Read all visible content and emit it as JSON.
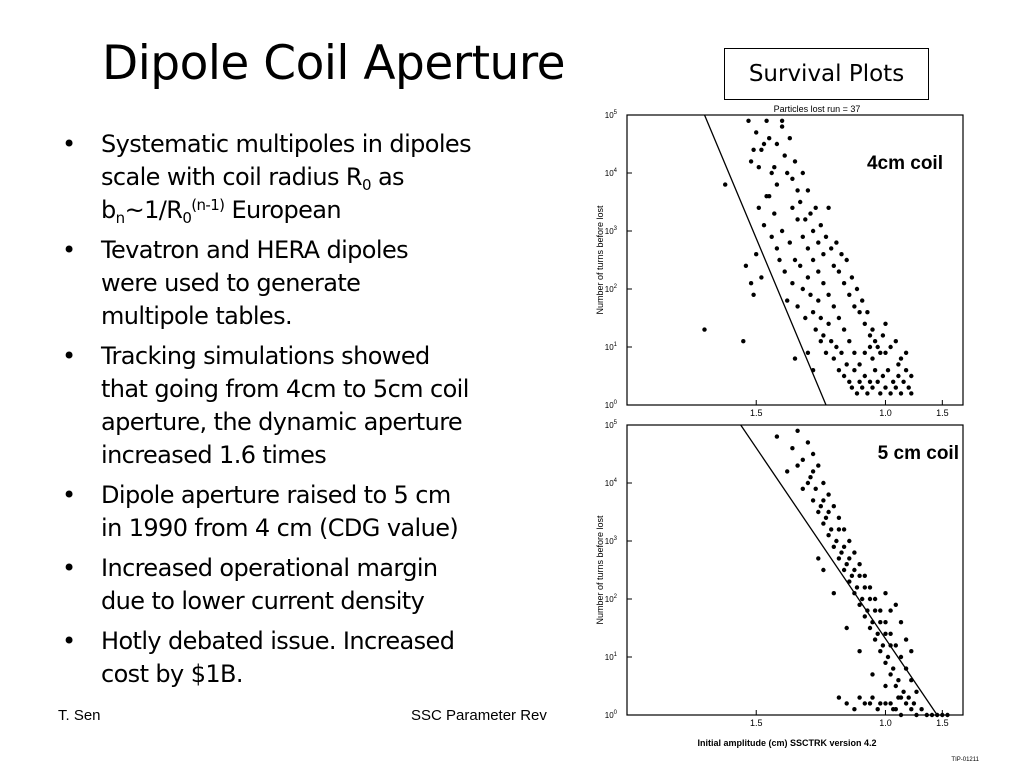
{
  "title": "Dipole Coil Aperture",
  "survival_label": "Survival Plots",
  "bullets": [
    {
      "lines": [
        [
          {
            "t": "Systematic multipoles in dipoles"
          }
        ],
        [
          {
            "t": "scale with coil radius R"
          },
          {
            "t": "0",
            "sub": true
          },
          {
            "t": " as"
          }
        ],
        [
          {
            "t": "b"
          },
          {
            "t": "n",
            "sub": true
          },
          {
            "t": "~1/R"
          },
          {
            "t": "0",
            "sub": true
          },
          {
            "t": "(n-1)",
            "sup": true
          },
          {
            "t": "  European"
          }
        ]
      ]
    },
    {
      "lines": [
        [
          {
            "t": "Tevatron and HERA dipoles"
          }
        ],
        [
          {
            "t": "were used to generate"
          }
        ],
        [
          {
            "t": "multipole tables."
          }
        ]
      ]
    },
    {
      "lines": [
        [
          {
            "t": "Tracking simulations showed"
          }
        ],
        [
          {
            "t": "that going from 4cm to 5cm coil"
          }
        ],
        [
          {
            "t": "aperture, the dynamic aperture"
          }
        ],
        [
          {
            "t": "increased  1.6  times"
          }
        ]
      ]
    },
    {
      "lines": [
        [
          {
            "t": "Dipole aperture raised to 5 cm"
          }
        ],
        [
          {
            "t": "in 1990 from 4 cm (CDG value)"
          }
        ]
      ]
    },
    {
      "lines": [
        [
          {
            "t": "Increased operational margin"
          }
        ],
        [
          {
            "t": "due to lower current density"
          }
        ]
      ]
    },
    {
      "lines": [
        [
          {
            "t": "Hotly debated issue. Increased"
          }
        ],
        [
          {
            "t": "cost by $1B."
          }
        ]
      ]
    }
  ],
  "bullet_char": "•",
  "footer": {
    "left": "T. Sen",
    "center": "SSC Parameter Rev"
  },
  "chart_data": [
    {
      "type": "scatter",
      "title": "Particles lost run = 37",
      "annotation": "4cm coil",
      "xlabel": "",
      "ylabel": "Number of turns before lost",
      "x_ticks": [
        "1.5",
        "1.0",
        "1.5"
      ],
      "y_ticks": [
        "10^0",
        "10^1",
        "10^2",
        "10^3",
        "10^4",
        "10^5"
      ],
      "y_scale": "log",
      "points": [
        [
          1.3,
          1.3
        ],
        [
          1.38,
          3.8
        ],
        [
          1.45,
          1.1
        ],
        [
          1.46,
          2.4
        ],
        [
          1.48,
          2.1
        ],
        [
          1.5,
          2.6
        ],
        [
          1.49,
          1.9
        ],
        [
          1.52,
          2.2
        ],
        [
          1.51,
          3.4
        ],
        [
          1.53,
          3.1
        ],
        [
          1.55,
          3.6
        ],
        [
          1.56,
          2.9
        ],
        [
          1.57,
          3.3
        ],
        [
          1.58,
          2.7
        ],
        [
          1.6,
          3.0
        ],
        [
          1.59,
          2.5
        ],
        [
          1.61,
          2.3
        ],
        [
          1.63,
          2.8
        ],
        [
          1.62,
          1.8
        ],
        [
          1.64,
          2.1
        ],
        [
          1.65,
          2.5
        ],
        [
          1.67,
          2.4
        ],
        [
          1.66,
          1.7
        ],
        [
          1.68,
          2.0
        ],
        [
          1.7,
          2.2
        ],
        [
          1.69,
          1.5
        ],
        [
          1.71,
          1.9
        ],
        [
          1.72,
          1.6
        ],
        [
          1.74,
          1.8
        ],
        [
          1.73,
          1.3
        ],
        [
          1.75,
          1.5
        ],
        [
          1.76,
          1.2
        ],
        [
          1.78,
          1.4
        ],
        [
          1.77,
          0.9
        ],
        [
          1.79,
          1.1
        ],
        [
          1.8,
          0.8
        ],
        [
          1.81,
          1.0
        ],
        [
          1.82,
          0.6
        ],
        [
          1.83,
          0.9
        ],
        [
          1.84,
          0.5
        ],
        [
          1.85,
          0.7
        ],
        [
          1.86,
          0.4
        ],
        [
          1.87,
          0.3
        ],
        [
          1.88,
          0.6
        ],
        [
          1.89,
          0.2
        ],
        [
          1.9,
          0.4
        ],
        [
          1.91,
          0.3
        ],
        [
          1.92,
          0.5
        ],
        [
          1.93,
          0.2
        ],
        [
          1.94,
          0.4
        ],
        [
          1.95,
          0.3
        ],
        [
          1.96,
          0.6
        ],
        [
          1.97,
          0.4
        ],
        [
          1.98,
          0.2
        ],
        [
          1.99,
          0.5
        ],
        [
          2.0,
          0.3
        ],
        [
          2.01,
          0.6
        ],
        [
          2.02,
          0.2
        ],
        [
          2.03,
          0.4
        ],
        [
          2.04,
          0.3
        ],
        [
          2.05,
          0.5
        ],
        [
          2.06,
          0.2
        ],
        [
          2.07,
          0.4
        ],
        [
          2.08,
          0.6
        ],
        [
          2.09,
          0.3
        ],
        [
          2.1,
          0.2
        ],
        [
          2.1,
          0.5
        ],
        [
          1.95,
          0.8
        ],
        [
          2.0,
          0.9
        ],
        [
          2.05,
          0.7
        ],
        [
          2.08,
          0.9
        ],
        [
          1.48,
          4.2
        ],
        [
          1.5,
          4.7
        ],
        [
          1.52,
          4.4
        ],
        [
          1.54,
          4.9
        ],
        [
          1.55,
          4.6
        ],
        [
          1.57,
          4.1
        ],
        [
          1.58,
          4.5
        ],
        [
          1.6,
          4.8
        ],
        [
          1.61,
          4.3
        ],
        [
          1.62,
          4.0
        ],
        [
          1.63,
          4.6
        ],
        [
          1.64,
          3.9
        ],
        [
          1.65,
          4.2
        ],
        [
          1.66,
          3.7
        ],
        [
          1.67,
          3.5
        ],
        [
          1.68,
          4.0
        ],
        [
          1.69,
          3.2
        ],
        [
          1.7,
          3.7
        ],
        [
          1.71,
          3.3
        ],
        [
          1.72,
          3.0
        ],
        [
          1.73,
          3.4
        ],
        [
          1.74,
          2.8
        ],
        [
          1.75,
          3.1
        ],
        [
          1.76,
          2.6
        ],
        [
          1.77,
          2.9
        ],
        [
          1.78,
          3.4
        ],
        [
          1.79,
          2.7
        ],
        [
          1.8,
          2.4
        ],
        [
          1.81,
          2.8
        ],
        [
          1.82,
          2.3
        ],
        [
          1.83,
          2.6
        ],
        [
          1.84,
          2.1
        ],
        [
          1.85,
          2.5
        ],
        [
          1.86,
          1.9
        ],
        [
          1.87,
          2.2
        ],
        [
          1.88,
          1.7
        ],
        [
          1.89,
          2.0
        ],
        [
          1.9,
          1.6
        ],
        [
          1.91,
          1.8
        ],
        [
          1.92,
          1.4
        ],
        [
          1.93,
          1.6
        ],
        [
          1.94,
          1.2
        ],
        [
          1.95,
          1.3
        ],
        [
          1.96,
          1.1
        ],
        [
          1.97,
          1.0
        ],
        [
          1.98,
          0.9
        ],
        [
          1.99,
          1.2
        ],
        [
          2.0,
          1.4
        ],
        [
          2.02,
          1.0
        ],
        [
          2.04,
          1.1
        ],
        [
          2.06,
          0.8
        ],
        [
          1.65,
          0.8
        ],
        [
          1.7,
          0.9
        ],
        [
          1.72,
          0.6
        ],
        [
          1.75,
          1.1
        ],
        [
          1.6,
          4.9
        ],
        [
          1.58,
          3.8
        ],
        [
          1.56,
          4.0
        ],
        [
          1.54,
          3.6
        ],
        [
          1.53,
          4.5
        ],
        [
          1.51,
          4.1
        ],
        [
          1.49,
          4.4
        ],
        [
          1.47,
          4.9
        ],
        [
          1.64,
          3.4
        ],
        [
          1.66,
          3.2
        ],
        [
          1.68,
          2.9
        ],
        [
          1.7,
          2.7
        ],
        [
          1.72,
          2.5
        ],
        [
          1.74,
          2.3
        ],
        [
          1.76,
          2.1
        ],
        [
          1.78,
          1.9
        ],
        [
          1.8,
          1.7
        ],
        [
          1.82,
          1.5
        ],
        [
          1.84,
          1.3
        ],
        [
          1.86,
          1.1
        ],
        [
          1.88,
          0.9
        ],
        [
          1.9,
          0.7
        ],
        [
          1.92,
          0.9
        ],
        [
          1.94,
          1.0
        ]
      ]
    },
    {
      "type": "scatter",
      "title": "",
      "annotation": "5 cm coil",
      "xlabel": "Initial amplitude (cm) SSCTRK version 4.2",
      "ylabel": "Number of turns before lost",
      "x_ticks": [
        "1.5",
        "1.0",
        "1.5"
      ],
      "y_ticks": [
        "10^0",
        "10^1",
        "10^2",
        "10^3",
        "10^4",
        "10^5"
      ],
      "y_scale": "log",
      "code": "TIP-01211",
      "points": [
        [
          1.58,
          4.8
        ],
        [
          1.62,
          4.2
        ],
        [
          1.64,
          4.6
        ],
        [
          1.66,
          4.9
        ],
        [
          1.68,
          4.4
        ],
        [
          1.7,
          4.7
        ],
        [
          1.71,
          4.1
        ],
        [
          1.72,
          4.5
        ],
        [
          1.73,
          3.9
        ],
        [
          1.74,
          4.3
        ],
        [
          1.75,
          3.6
        ],
        [
          1.76,
          4.0
        ],
        [
          1.77,
          3.4
        ],
        [
          1.78,
          3.8
        ],
        [
          1.79,
          3.2
        ],
        [
          1.8,
          3.6
        ],
        [
          1.81,
          3.0
        ],
        [
          1.82,
          3.4
        ],
        [
          1.83,
          2.8
        ],
        [
          1.84,
          3.2
        ],
        [
          1.85,
          2.6
        ],
        [
          1.86,
          3.0
        ],
        [
          1.87,
          2.4
        ],
        [
          1.88,
          2.8
        ],
        [
          1.89,
          2.2
        ],
        [
          1.9,
          2.6
        ],
        [
          1.91,
          2.0
        ],
        [
          1.92,
          2.4
        ],
        [
          1.93,
          1.8
        ],
        [
          1.94,
          2.2
        ],
        [
          1.95,
          1.6
        ],
        [
          1.96,
          2.0
        ],
        [
          1.97,
          1.4
        ],
        [
          1.98,
          1.8
        ],
        [
          1.99,
          1.2
        ],
        [
          2.0,
          1.6
        ],
        [
          2.01,
          1.0
        ],
        [
          2.02,
          1.4
        ],
        [
          2.03,
          0.8
        ],
        [
          2.04,
          1.2
        ],
        [
          2.05,
          0.6
        ],
        [
          2.06,
          1.0
        ],
        [
          2.07,
          0.4
        ],
        [
          2.08,
          0.8
        ],
        [
          2.09,
          0.3
        ],
        [
          2.1,
          0.6
        ],
        [
          2.11,
          0.2
        ],
        [
          2.12,
          0.4
        ],
        [
          1.74,
          2.7
        ],
        [
          1.76,
          2.5
        ],
        [
          1.8,
          2.1
        ],
        [
          1.85,
          1.5
        ],
        [
          1.9,
          1.1
        ],
        [
          1.95,
          0.7
        ],
        [
          2.0,
          0.5
        ],
        [
          2.05,
          0.3
        ],
        [
          1.7,
          4.0
        ],
        [
          1.72,
          3.7
        ],
        [
          1.74,
          3.5
        ],
        [
          1.76,
          3.3
        ],
        [
          1.78,
          3.1
        ],
        [
          1.8,
          2.9
        ],
        [
          1.82,
          2.7
        ],
        [
          1.84,
          2.5
        ],
        [
          1.86,
          2.3
        ],
        [
          1.88,
          2.1
        ],
        [
          1.9,
          1.9
        ],
        [
          1.92,
          1.7
        ],
        [
          1.94,
          1.5
        ],
        [
          1.96,
          1.3
        ],
        [
          1.98,
          1.1
        ],
        [
          2.0,
          0.9
        ],
        [
          2.02,
          0.7
        ],
        [
          2.04,
          0.5
        ],
        [
          2.06,
          0.3
        ],
        [
          1.9,
          0.3
        ],
        [
          1.92,
          0.2
        ],
        [
          1.95,
          0.3
        ],
        [
          1.98,
          0.2
        ],
        [
          2.02,
          0.2
        ],
        [
          2.08,
          0.2
        ],
        [
          2.14,
          0.1
        ],
        [
          2.16,
          0.0
        ],
        [
          2.18,
          0.0
        ],
        [
          2.2,
          0.0
        ],
        [
          2.22,
          0.0
        ],
        [
          2.24,
          0.0
        ],
        [
          2.12,
          0.0
        ],
        [
          2.1,
          0.1
        ],
        [
          2.06,
          0.0
        ],
        [
          2.04,
          0.1
        ],
        [
          1.82,
          0.3
        ],
        [
          1.85,
          0.2
        ],
        [
          1.88,
          0.1
        ],
        [
          1.94,
          0.2
        ],
        [
          1.97,
          0.1
        ],
        [
          2.0,
          0.2
        ],
        [
          2.03,
          0.1
        ],
        [
          2.0,
          2.1
        ],
        [
          2.02,
          1.8
        ],
        [
          2.04,
          1.9
        ],
        [
          2.06,
          1.6
        ],
        [
          2.08,
          1.3
        ],
        [
          2.1,
          1.1
        ],
        [
          1.66,
          4.3
        ],
        [
          1.68,
          3.9
        ],
        [
          1.72,
          4.2
        ],
        [
          1.76,
          3.7
        ],
        [
          1.78,
          3.5
        ],
        [
          1.82,
          3.2
        ],
        [
          1.84,
          2.9
        ],
        [
          1.86,
          2.7
        ],
        [
          1.88,
          2.5
        ],
        [
          1.9,
          2.4
        ],
        [
          1.92,
          2.2
        ],
        [
          1.94,
          2.0
        ],
        [
          1.96,
          1.8
        ],
        [
          1.98,
          1.6
        ],
        [
          2.0,
          1.4
        ],
        [
          2.02,
          1.2
        ]
      ]
    }
  ]
}
